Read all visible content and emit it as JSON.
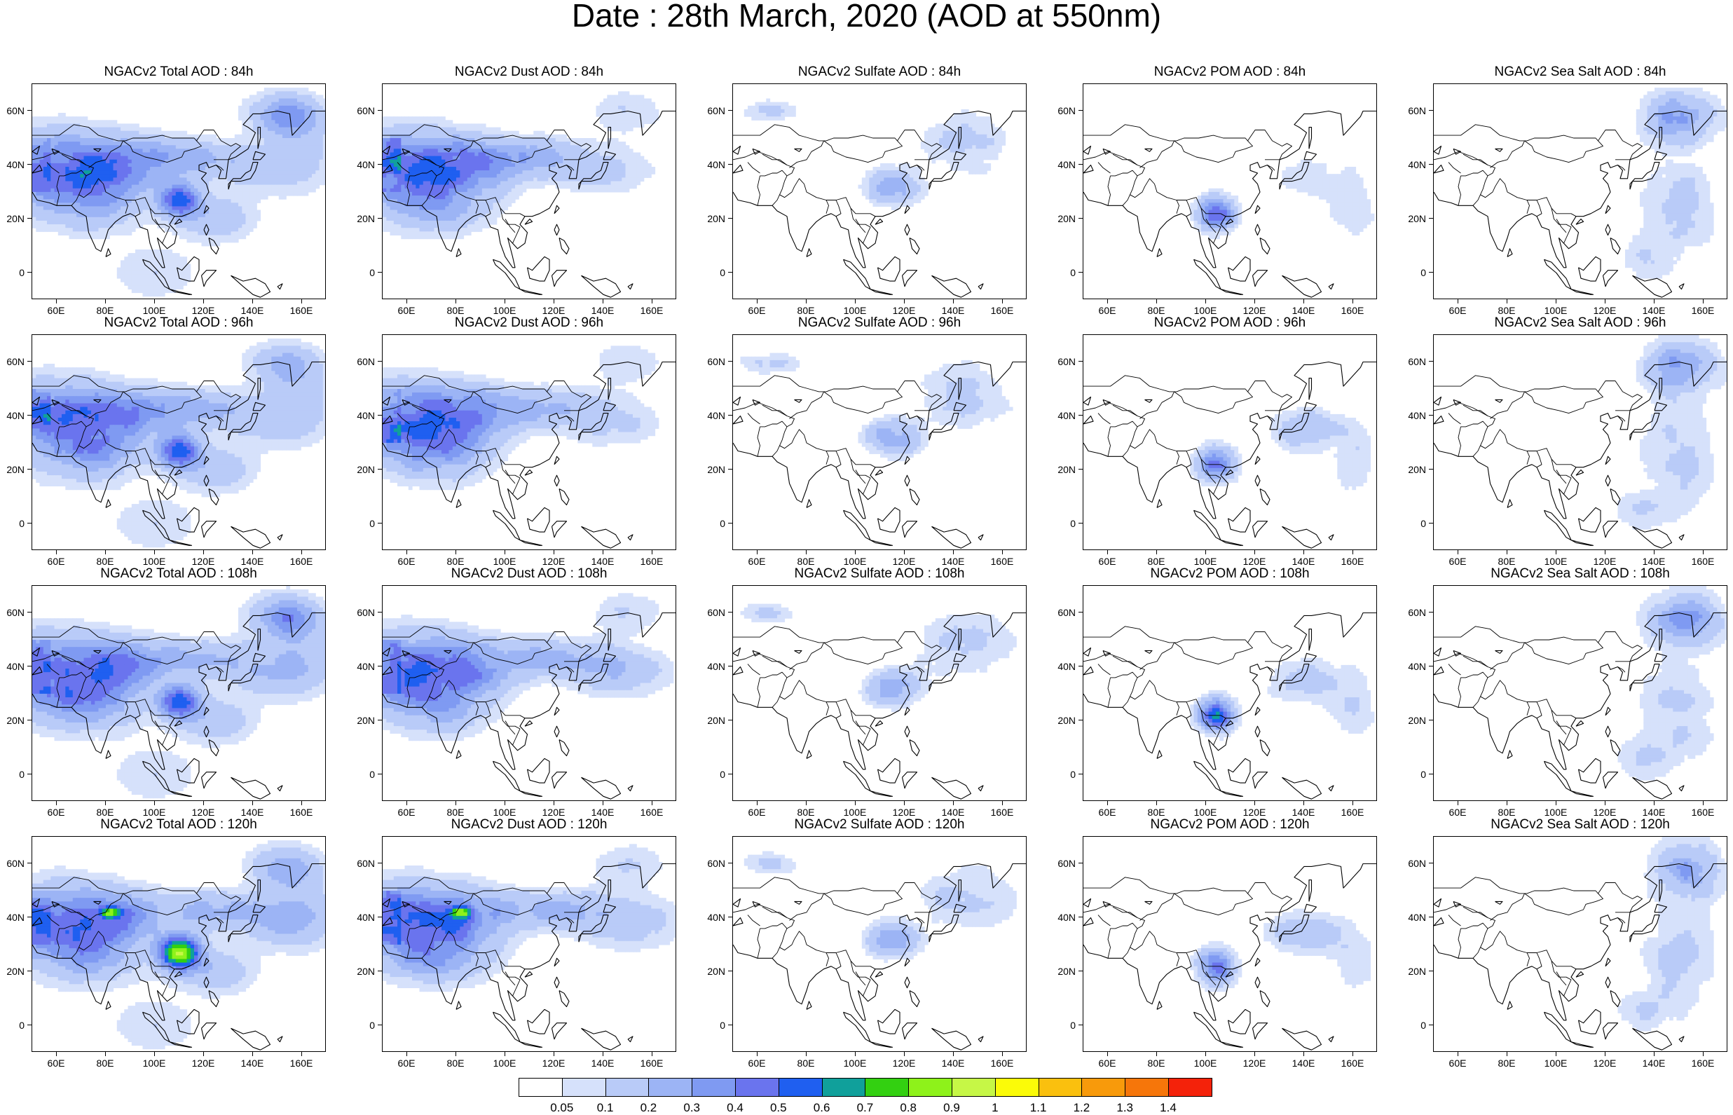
{
  "title": "Date : 28th March, 2020 (AOD at 550nm)",
  "axes": {
    "x_ticks": [
      "60E",
      "80E",
      "100E",
      "120E",
      "140E",
      "160E"
    ],
    "y_ticks": [
      "60N",
      "40N",
      "20N",
      "0"
    ],
    "lon_range": [
      50,
      170
    ],
    "lat_range": [
      -10,
      70
    ]
  },
  "rows": [
    {
      "titles": [
        "NGACv2 Total AOD : 84h",
        "NGACv2 Dust AOD : 84h",
        "NGACv2 Sulfate AOD : 84h",
        "NGACv2 POM AOD : 84h",
        "NGACv2 Sea Salt AOD : 84h"
      ]
    },
    {
      "titles": [
        "NGACv2 Total AOD : 96h",
        "NGACv2 Dust AOD : 96h",
        "NGACv2 Sulfate AOD : 96h",
        "NGACv2 POM AOD : 96h",
        "NGACv2 Sea Salt AOD : 96h"
      ]
    },
    {
      "titles": [
        "NGACv2 Total AOD : 108h",
        "NGACv2 Dust AOD : 108h",
        "NGACv2 Sulfate AOD : 108h",
        "NGACv2 POM AOD : 108h",
        "NGACv2 Sea Salt AOD : 108h"
      ]
    },
    {
      "titles": [
        "NGACv2 Total AOD : 120h",
        "NGACv2 Dust AOD : 120h",
        "NGACv2 Sulfate AOD : 120h",
        "NGACv2 POM AOD : 120h",
        "NGACv2 Sea Salt  AOD : 120h"
      ]
    }
  ],
  "colorbar": {
    "labels": [
      "0.05",
      "0.1",
      "0.2",
      "0.3",
      "0.4",
      "0.5",
      "0.6",
      "0.7",
      "0.8",
      "0.9",
      "1",
      "1.1",
      "1.2",
      "1.3",
      "1.4"
    ],
    "colors": [
      "#ffffff",
      "#d6e1fb",
      "#b9cbf8",
      "#9cb4f5",
      "#7f9af2",
      "#6a74ee",
      "#1f5ff0",
      "#10a09b",
      "#33d011",
      "#8ef21a",
      "#c6f746",
      "#fbfb08",
      "#fac00e",
      "#f89a0b",
      "#f6760a",
      "#f4220a"
    ]
  }
}
